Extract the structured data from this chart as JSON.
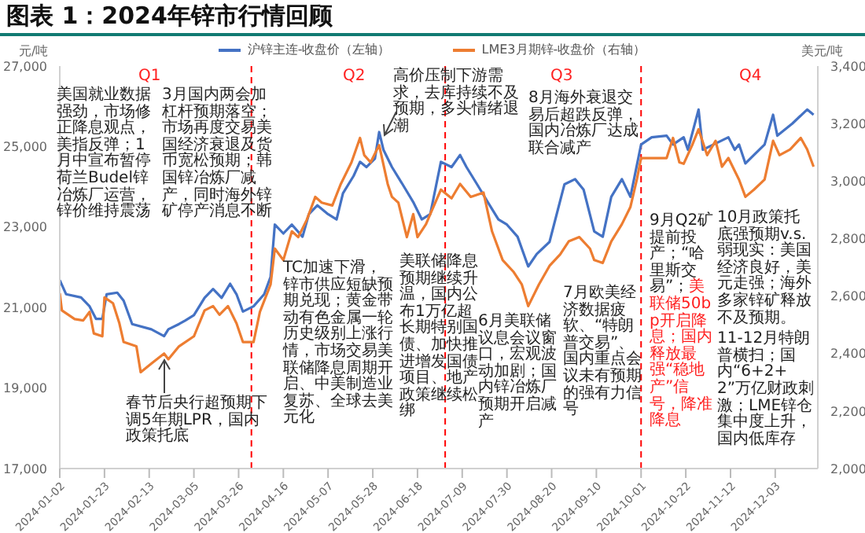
{
  "chart_data": {
    "type": "line",
    "title": "图表 1：2024年锌市行情回顾",
    "ylabel": "元/吨",
    "y2label": "美元/吨",
    "xlim": [
      "2024-01-02",
      "2024-12-23"
    ],
    "xticks": [
      "2024-01-02",
      "2024-01-23",
      "2024-02-13",
      "2024-03-05",
      "2024-03-26",
      "2024-04-16",
      "2024-05-07",
      "2024-05-28",
      "2024-06-18",
      "2024-07-09",
      "2024-07-30",
      "2024-08-20",
      "2024-09-10",
      "2024-10-01",
      "2024-10-22",
      "2024-11-12",
      "2024-12-03"
    ],
    "ylim": [
      17000,
      27000
    ],
    "yticks": [
      {
        "value": 17000,
        "label": "17,000"
      },
      {
        "value": 19000,
        "label": "19,000"
      },
      {
        "value": 21000,
        "label": "21,000"
      },
      {
        "value": 23000,
        "label": "23,000"
      },
      {
        "value": 25000,
        "label": "25,000"
      },
      {
        "value": 27000,
        "label": "27,000"
      }
    ],
    "y2lim": [
      2000,
      3400
    ],
    "y2ticks": [
      {
        "value": 2000,
        "label": "2,000"
      },
      {
        "value": 2200,
        "label": "2,200"
      },
      {
        "value": 2400,
        "label": "2,400"
      },
      {
        "value": 2600,
        "label": "2,600"
      },
      {
        "value": 2800,
        "label": "2,800"
      },
      {
        "value": 3000,
        "label": "3,000"
      },
      {
        "value": 3200,
        "label": "3,200"
      },
      {
        "value": 3400,
        "label": "3,400"
      }
    ],
    "legend": "top",
    "series": [
      {
        "name": "沪锌主连-收盘价（左轴）",
        "color": "#4472c4",
        "x": [
          "2024-01-02",
          "2024-01-05",
          "2024-01-12",
          "2024-01-16",
          "2024-01-19",
          "2024-01-22",
          "2024-01-24",
          "2024-01-29",
          "2024-02-01",
          "2024-02-05",
          "2024-02-14",
          "2024-02-20",
          "2024-02-22",
          "2024-02-27",
          "2024-03-01",
          "2024-03-05",
          "2024-03-10",
          "2024-03-14",
          "2024-03-18",
          "2024-03-22",
          "2024-03-25",
          "2024-03-28",
          "2024-04-02",
          "2024-04-07",
          "2024-04-10",
          "2024-04-12",
          "2024-04-16",
          "2024-04-20",
          "2024-04-25",
          "2024-04-28",
          "2024-05-02",
          "2024-05-07",
          "2024-05-11",
          "2024-05-14",
          "2024-05-19",
          "2024-05-22",
          "2024-05-25",
          "2024-05-29",
          "2024-05-31",
          "2024-06-02",
          "2024-06-06",
          "2024-06-11",
          "2024-06-16",
          "2024-06-20",
          "2024-06-24",
          "2024-06-29",
          "2024-07-04",
          "2024-07-08",
          "2024-07-11",
          "2024-07-16",
          "2024-07-21",
          "2024-07-26",
          "2024-07-30",
          "2024-08-04",
          "2024-08-09",
          "2024-08-13",
          "2024-08-19",
          "2024-08-26",
          "2024-08-31",
          "2024-09-04",
          "2024-09-09",
          "2024-09-13",
          "2024-09-17",
          "2024-09-22",
          "2024-09-26",
          "2024-10-01",
          "2024-10-06",
          "2024-10-13",
          "2024-10-16",
          "2024-10-21",
          "2024-10-23",
          "2024-10-28",
          "2024-10-30",
          "2024-11-04",
          "2024-11-11",
          "2024-11-14",
          "2024-11-16",
          "2024-11-19",
          "2024-11-23",
          "2024-11-28",
          "2024-12-02",
          "2024-12-04",
          "2024-12-08",
          "2024-12-11",
          "2024-12-18",
          "2024-12-21"
        ],
        "values": [
          21680,
          21330,
          21250,
          21030,
          20720,
          20720,
          21330,
          21370,
          21170,
          20590,
          20460,
          20290,
          20460,
          20590,
          20680,
          20810,
          21240,
          21460,
          21240,
          21590,
          21330,
          20900,
          21030,
          21330,
          21760,
          23060,
          22840,
          23060,
          22760,
          23320,
          23540,
          23320,
          23190,
          23840,
          24270,
          24620,
          24490,
          24700,
          25360,
          24920,
          24490,
          24060,
          23620,
          23190,
          23320,
          24620,
          24490,
          24790,
          24490,
          24060,
          23620,
          23190,
          23060,
          22760,
          22020,
          22330,
          22630,
          24060,
          24190,
          23930,
          22890,
          22760,
          23750,
          24190,
          23750,
          25050,
          25230,
          25270,
          25050,
          25230,
          24920,
          25920,
          24920,
          25050,
          25230,
          24920,
          25050,
          24580,
          24790,
          25050,
          25790,
          25270,
          25440,
          25570,
          25920,
          25790
        ]
      },
      {
        "name": "LME3月期锌-收盘价（右轴）",
        "color": "#ed7d31",
        "axis": "y2",
        "x": [
          "2024-01-02",
          "2024-01-03",
          "2024-01-09",
          "2024-01-13",
          "2024-01-16",
          "2024-01-18",
          "2024-01-22",
          "2024-01-23",
          "2024-01-27",
          "2024-01-30",
          "2024-02-01",
          "2024-02-07",
          "2024-02-09",
          "2024-02-14",
          "2024-02-20",
          "2024-02-22",
          "2024-02-27",
          "2024-03-05",
          "2024-03-10",
          "2024-03-14",
          "2024-03-17",
          "2024-03-21",
          "2024-03-25",
          "2024-03-28",
          "2024-04-02",
          "2024-04-05",
          "2024-04-10",
          "2024-04-12",
          "2024-04-16",
          "2024-04-20",
          "2024-04-23",
          "2024-04-27",
          "2024-05-01",
          "2024-05-04",
          "2024-05-09",
          "2024-05-13",
          "2024-05-18",
          "2024-05-22",
          "2024-05-24",
          "2024-05-27",
          "2024-05-31",
          "2024-06-04",
          "2024-06-06",
          "2024-06-09",
          "2024-06-13",
          "2024-06-16",
          "2024-06-18",
          "2024-06-22",
          "2024-06-24",
          "2024-06-29",
          "2024-07-04",
          "2024-07-08",
          "2024-07-13",
          "2024-07-19",
          "2024-07-23",
          "2024-07-28",
          "2024-08-02",
          "2024-08-06",
          "2024-08-09",
          "2024-08-14",
          "2024-08-19",
          "2024-08-24",
          "2024-08-28",
          "2024-09-02",
          "2024-09-07",
          "2024-09-09",
          "2024-09-13",
          "2024-09-17",
          "2024-09-22",
          "2024-09-26",
          "2024-09-29",
          "2024-10-01",
          "2024-10-13",
          "2024-10-16",
          "2024-10-19",
          "2024-10-21",
          "2024-10-25",
          "2024-10-28",
          "2024-11-01",
          "2024-11-05",
          "2024-11-08",
          "2024-11-11",
          "2024-11-16",
          "2024-11-19",
          "2024-11-23",
          "2024-11-28",
          "2024-12-02",
          "2024-12-05",
          "2024-12-10",
          "2024-12-15",
          "2024-12-18",
          "2024-12-21"
        ],
        "values": [
          2610,
          2550,
          2520,
          2515,
          2545,
          2470,
          2460,
          2595,
          2575,
          2505,
          2440,
          2425,
          2335,
          2365,
          2400,
          2380,
          2425,
          2460,
          2550,
          2565,
          2535,
          2565,
          2505,
          2440,
          2440,
          2545,
          2640,
          2765,
          2725,
          2825,
          2805,
          2865,
          2945,
          2925,
          2915,
          2990,
          3065,
          3150,
          3090,
          3065,
          3125,
          2990,
          2945,
          2925,
          2805,
          2885,
          2805,
          2850,
          2885,
          2970,
          2940,
          2990,
          2945,
          2960,
          2825,
          2725,
          2685,
          2640,
          2565,
          2640,
          2705,
          2745,
          2790,
          2805,
          2765,
          2725,
          2715,
          2790,
          2850,
          2910,
          3005,
          3080,
          3080,
          3150,
          3065,
          3060,
          3125,
          3180,
          3090,
          3140,
          3050,
          3080,
          3005,
          2945,
          2970,
          3005,
          3140,
          3090,
          3110,
          3150,
          3110,
          3050
        ]
      }
    ],
    "ref_lines": [
      {
        "axis": "x",
        "value": "2024-04-01",
        "color": "#ff0000",
        "line_style": "dashed"
      },
      {
        "axis": "x",
        "value": "2024-07-01",
        "color": "#ff0000",
        "line_style": "dashed"
      },
      {
        "axis": "x",
        "value": "2024-10-01",
        "color": "#ff0000",
        "line_style": "dashed"
      }
    ],
    "annotations": [
      "Q1",
      "Q2",
      "Q3",
      "Q4",
      "美国就业数据强劲，市场修正降息观点，美指反弹；1月中宣布暂停荷兰Budel锌冶炼厂运营，锌价维持震荡",
      "3月国内两会加杠杆预期落空；市场再度交易美国经济衰退及货币宽松预期；韩国锌冶炼厂减产，同时海外锌矿停产消息不断",
      "春节后央行超预期下调5年期LPR，国内政策托底",
      "TC加速下滑，锌市供应短缺预期兑现；黄金带动有色金属一轮历史级别上涨行情，市场交易美联储降息周期开启、中美制造业复苏、全球去美元化",
      "美联储降息预期继续升温，国内公布1万亿超长期特别国债、加快推进增发国债项目、地产政策继续松绑",
      "高价压制下游需求，去库持续不及预期，多头情绪退潮",
      "6月美联储议息会议窗口，宏观波动加剧；国内锌冶炼厂预期开启减产",
      "7月欧美经济数据疲软、“特朗普交易”、国内重点会议未有预期的强有力信号",
      "8月海外衰退交易后超跌反弹，国内冶炼厂达成联合减产",
      "9月Q2矿提前投产；“哈里斯交易”；",
      "美联储50bp开启降息；国内释放最强“稳地产”信号，降准降息",
      "10月政策托底强预期v.s.弱现实：美国经济良好，美元走强；海外多家锌矿释放不及预期。",
      "11-12月特朗普横扫；国内“6+2+2”万亿财政刺激；LME锌仓集中度上升，国内低库存"
    ]
  }
}
